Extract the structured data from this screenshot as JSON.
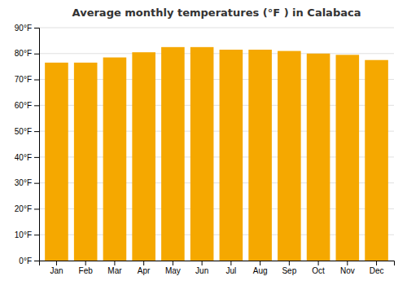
{
  "chart_data": {
    "type": "bar",
    "title": "Average monthly temperatures (°F ) in Calabaca",
    "categories": [
      "Jan",
      "Feb",
      "Mar",
      "Apr",
      "May",
      "Jun",
      "Jul",
      "Aug",
      "Sep",
      "Oct",
      "Nov",
      "Dec"
    ],
    "values": [
      76.5,
      76.5,
      78.5,
      80.5,
      82.5,
      82.5,
      81.5,
      81.5,
      81.0,
      80.0,
      79.5,
      77.5
    ],
    "color": "#F5A800",
    "ylim": [
      0,
      90
    ],
    "yticks": [
      {
        "value": 0,
        "label": "0°F"
      },
      {
        "value": 10,
        "label": "10°F"
      },
      {
        "value": 20,
        "label": "20°F"
      },
      {
        "value": 30,
        "label": "30°F"
      },
      {
        "value": 40,
        "label": "40°F"
      },
      {
        "value": 50,
        "label": "50°F"
      },
      {
        "value": 60,
        "label": "60°F"
      },
      {
        "value": 70,
        "label": "70°F"
      },
      {
        "value": 80,
        "label": "80°F"
      },
      {
        "value": 90,
        "label": "90°F"
      }
    ],
    "grid": true
  }
}
